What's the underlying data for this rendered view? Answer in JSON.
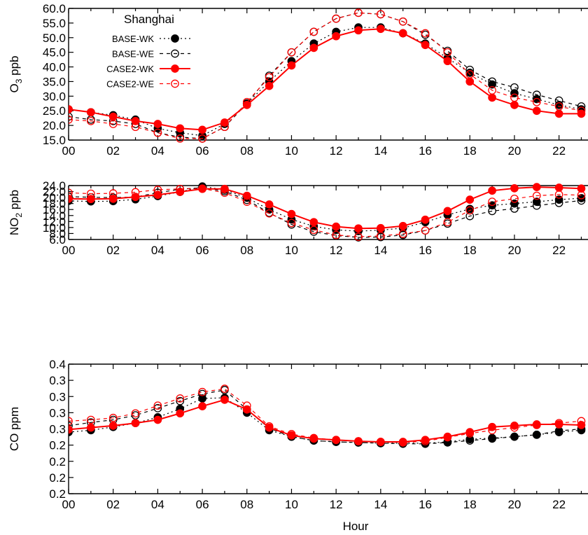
{
  "figure": {
    "title": "Shanghai",
    "xlabel": "Hour"
  },
  "legend": [
    {
      "label": "BASE-WK",
      "series": 0
    },
    {
      "label": "BASE-WE",
      "series": 1
    },
    {
      "label": "CASE2-WK",
      "series": 2
    },
    {
      "label": "CASE2-WE",
      "series": 3
    }
  ],
  "series_styles": [
    {
      "name": "BASE-WK",
      "color": "#000000",
      "filled": true,
      "dash": "2,4"
    },
    {
      "name": "BASE-WE",
      "color": "#000000",
      "filled": false,
      "dash": "5,5"
    },
    {
      "name": "CASE2-WK",
      "color": "#ff0000",
      "filled": true,
      "dash": ""
    },
    {
      "name": "CASE2-WE",
      "color": "#ff0000",
      "filled": false,
      "dash": "5,5"
    }
  ],
  "chart_data": [
    {
      "type": "line",
      "title": "Shanghai",
      "xlabel": "",
      "ylabel_main": "O",
      "ylabel_sub": "3",
      "ylabel_rest": " ppb",
      "x": [
        0,
        1,
        2,
        3,
        4,
        5,
        6,
        7,
        8,
        9,
        10,
        11,
        12,
        13,
        14,
        15,
        16,
        17,
        18,
        19,
        20,
        21,
        22,
        23
      ],
      "xlim": [
        0,
        23
      ],
      "ylim": [
        15,
        60
      ],
      "yticks": [
        15,
        20,
        25,
        30,
        35,
        40,
        45,
        50,
        55,
        60
      ],
      "ytick_labels": [
        "15.0",
        "20.0",
        "25.0",
        "30.0",
        "35.0",
        "40.0",
        "45.0",
        "50.0",
        "55.0",
        "60.0"
      ],
      "xtick_values": [
        0,
        2,
        4,
        6,
        8,
        10,
        12,
        14,
        16,
        18,
        20,
        22
      ],
      "xtick_labels": [
        "00",
        "02",
        "04",
        "06",
        "08",
        "10",
        "12",
        "14",
        "16",
        "18",
        "20",
        "22"
      ],
      "series": [
        {
          "name": "BASE-WK",
          "values": [
            25.5,
            24.5,
            23.5,
            22.0,
            19.0,
            17.5,
            16.5,
            20.5,
            27.5,
            35.0,
            42.0,
            48.0,
            52.0,
            53.5,
            53.5,
            51.5,
            48.0,
            43.0,
            38.0,
            34.0,
            31.0,
            29.0,
            27.0,
            25.5
          ]
        },
        {
          "name": "BASE-WE",
          "values": [
            23.0,
            22.0,
            21.5,
            20.5,
            17.5,
            16.0,
            15.5,
            19.5,
            27.5,
            37.0,
            45.0,
            52.0,
            56.5,
            58.5,
            58.0,
            55.5,
            51.0,
            45.5,
            39.0,
            35.0,
            33.0,
            30.5,
            28.5,
            26.5
          ]
        },
        {
          "name": "CASE2-WK",
          "values": [
            25.5,
            24.5,
            23.0,
            21.5,
            20.5,
            19.0,
            18.5,
            21.0,
            27.0,
            33.5,
            40.5,
            46.5,
            50.5,
            52.5,
            53.0,
            51.5,
            47.5,
            42.0,
            35.0,
            29.5,
            27.0,
            25.0,
            24.0,
            24.0
          ]
        },
        {
          "name": "CASE2-WE",
          "values": [
            22.0,
            21.5,
            20.5,
            19.5,
            17.5,
            15.5,
            15.5,
            19.5,
            28.0,
            36.5,
            45.0,
            52.0,
            56.5,
            58.5,
            58.0,
            55.5,
            51.5,
            45.0,
            37.5,
            32.0,
            29.5,
            28.0,
            26.5,
            25.0
          ]
        }
      ]
    },
    {
      "type": "line",
      "title": "",
      "xlabel": "",
      "ylabel_main": "NO",
      "ylabel_sub": "2",
      "ylabel_rest": " ppb",
      "x": [
        0,
        1,
        2,
        3,
        4,
        5,
        6,
        7,
        8,
        9,
        10,
        11,
        12,
        13,
        14,
        15,
        16,
        17,
        18,
        19,
        20,
        21,
        22,
        23
      ],
      "xlim": [
        0,
        23
      ],
      "ylim": [
        6,
        24
      ],
      "yticks": [
        6,
        8,
        10,
        12,
        14,
        16,
        18,
        20,
        22,
        24
      ],
      "ytick_labels": [
        "6.0",
        "8.0",
        "10.0",
        "12.0",
        "14.0",
        "16.0",
        "18.0",
        "20.0",
        "22.0",
        "24.0"
      ],
      "xtick_values": [
        0,
        2,
        4,
        6,
        8,
        10,
        12,
        14,
        16,
        18,
        20,
        22
      ],
      "xtick_labels": [
        "00",
        "02",
        "04",
        "06",
        "08",
        "10",
        "12",
        "14",
        "16",
        "18",
        "20",
        "22"
      ],
      "series": [
        {
          "name": "BASE-WK",
          "values": [
            18.9,
            18.7,
            18.8,
            19.4,
            20.5,
            21.9,
            23.7,
            22.6,
            19.9,
            16.0,
            12.7,
            10.4,
            9.2,
            8.8,
            9.1,
            9.8,
            11.8,
            14.2,
            16.2,
            17.4,
            18.0,
            18.6,
            19.3,
            19.8
          ]
        },
        {
          "name": "BASE-WE",
          "values": [
            20.3,
            20.1,
            20.0,
            20.2,
            21.6,
            22.8,
            23.3,
            22.1,
            19.2,
            14.9,
            11.0,
            8.6,
            7.3,
            6.7,
            6.8,
            7.5,
            9.0,
            11.3,
            13.8,
            15.5,
            16.3,
            17.3,
            18.2,
            19.0
          ]
        },
        {
          "name": "CASE2-WK",
          "values": [
            19.6,
            19.5,
            19.6,
            20.2,
            20.9,
            21.9,
            22.9,
            22.9,
            20.6,
            17.7,
            14.5,
            11.8,
            10.3,
            9.7,
            9.8,
            10.5,
            12.6,
            15.5,
            19.3,
            22.3,
            23.1,
            23.5,
            23.3,
            23.0
          ]
        },
        {
          "name": "CASE2-WE",
          "values": [
            21.6,
            21.3,
            21.4,
            21.8,
            22.6,
            22.9,
            23.0,
            21.6,
            18.6,
            14.7,
            11.5,
            9.2,
            7.5,
            6.9,
            7.2,
            7.9,
            9.0,
            11.8,
            15.7,
            18.6,
            19.6,
            20.6,
            21.0,
            20.8
          ]
        }
      ]
    },
    {
      "type": "line",
      "title": "",
      "xlabel": "Hour",
      "ylabel_main": "CO ppm",
      "ylabel_sub": "",
      "ylabel_rest": "",
      "x": [
        0,
        1,
        2,
        3,
        4,
        5,
        6,
        7,
        8,
        9,
        10,
        11,
        12,
        13,
        14,
        15,
        16,
        17,
        18,
        19,
        20,
        21,
        22,
        23
      ],
      "xlim": [
        0,
        23
      ],
      "ylim": [
        0.2,
        0.4
      ],
      "yticks": [
        0.2,
        0.225,
        0.25,
        0.275,
        0.3,
        0.325,
        0.35,
        0.375,
        0.4
      ],
      "ytick_labels": [
        "0.2",
        "0.2",
        "0.2",
        "0.2",
        "0.3",
        "0.3",
        "0.3",
        "0.3",
        "0.4"
      ],
      "xtick_values": [
        0,
        2,
        4,
        6,
        8,
        10,
        12,
        14,
        16,
        18,
        20,
        22
      ],
      "xtick_labels": [
        "00",
        "02",
        "04",
        "06",
        "08",
        "10",
        "12",
        "14",
        "16",
        "18",
        "20",
        "22"
      ],
      "series": [
        {
          "name": "BASE-WK",
          "values": [
            0.295,
            0.298,
            0.303,
            0.309,
            0.318,
            0.331,
            0.347,
            0.348,
            0.325,
            0.298,
            0.288,
            0.282,
            0.28,
            0.279,
            0.278,
            0.278,
            0.278,
            0.28,
            0.284,
            0.286,
            0.288,
            0.291,
            0.295,
            0.298
          ]
        },
        {
          "name": "BASE-WE",
          "values": [
            0.305,
            0.31,
            0.314,
            0.321,
            0.332,
            0.343,
            0.354,
            0.36,
            0.33,
            0.301,
            0.288,
            0.282,
            0.28,
            0.279,
            0.278,
            0.277,
            0.277,
            0.279,
            0.282,
            0.285,
            0.288,
            0.291,
            0.297,
            0.3
          ]
        },
        {
          "name": "CASE2-WK",
          "values": [
            0.299,
            0.302,
            0.305,
            0.309,
            0.314,
            0.324,
            0.335,
            0.345,
            0.33,
            0.302,
            0.29,
            0.285,
            0.283,
            0.281,
            0.28,
            0.28,
            0.283,
            0.288,
            0.295,
            0.303,
            0.305,
            0.307,
            0.307,
            0.306
          ]
        },
        {
          "name": "CASE2-WE",
          "values": [
            0.312,
            0.314,
            0.317,
            0.324,
            0.336,
            0.347,
            0.357,
            0.362,
            0.336,
            0.304,
            0.292,
            0.286,
            0.283,
            0.281,
            0.28,
            0.279,
            0.281,
            0.287,
            0.293,
            0.298,
            0.302,
            0.306,
            0.309,
            0.312
          ]
        }
      ]
    }
  ]
}
